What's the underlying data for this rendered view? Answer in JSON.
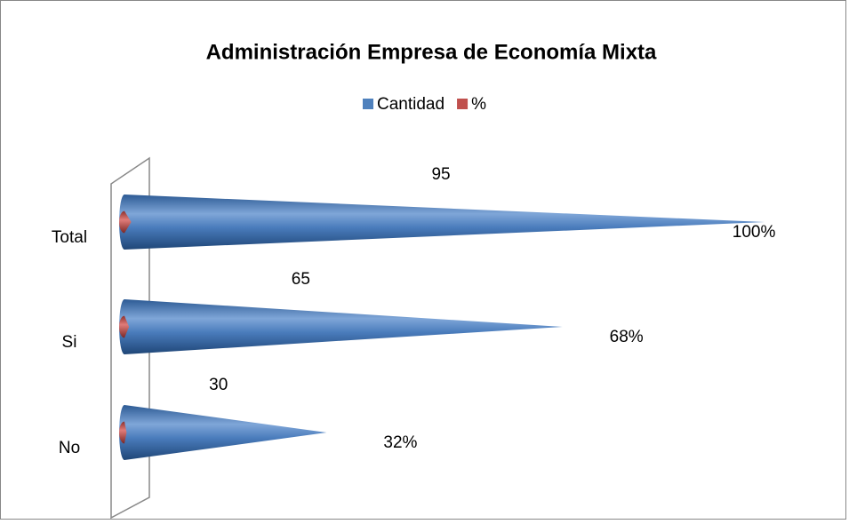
{
  "chart_data": {
    "type": "cone_bar",
    "title": "Administración  Empresa de Economía Mixta",
    "categories": [
      "Total",
      "Si",
      "No"
    ],
    "series": [
      {
        "name": "Cantidad",
        "color": "#4f81bd",
        "values": [
          95,
          65,
          30
        ]
      },
      {
        "name": "%",
        "color": "#c0504d",
        "values": [
          1,
          0.68,
          0.32
        ],
        "value_labels": [
          "100%",
          "68%",
          "32%"
        ]
      }
    ],
    "xlim": [
      0,
      100
    ]
  }
}
